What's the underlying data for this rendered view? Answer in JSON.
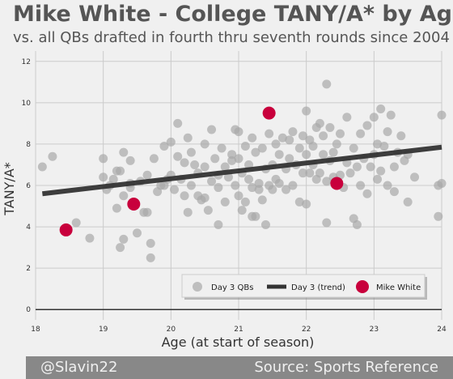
{
  "title": "Mike White - College TANY/A* by Age",
  "subtitle": "vs. all QBs drafted in fourth thru seventh rounds since 2004",
  "footer": {
    "left": "@Slavin22",
    "right": "Source: Sports Reference"
  },
  "colors": {
    "background": "#f0f0f0",
    "grid": "#cbcbcb",
    "scatter": "#a8a8a8",
    "trend": "#333333",
    "highlight": "#c8003c",
    "text": "#555555"
  },
  "chart_data": {
    "type": "scatter",
    "xlabel": "Age (at start of season)",
    "ylabel": "TANY/A*",
    "xlim": [
      18,
      24
    ],
    "ylim": [
      -0.5,
      12.5
    ],
    "xticks": [
      18,
      19,
      20,
      21,
      22,
      23,
      24
    ],
    "yticks": [
      0,
      2,
      4,
      6,
      8,
      10,
      12
    ],
    "grid": true,
    "legend_position": "bottom-right",
    "legend": [
      "Day 3 QBs",
      "Day 3 (trend)",
      "Mike White"
    ],
    "trend": {
      "name": "Day 3 (trend)",
      "x": [
        18.1,
        24
      ],
      "y": [
        5.6,
        7.85
      ]
    },
    "highlight": {
      "name": "Mike White",
      "points": [
        [
          18.45,
          3.85
        ],
        [
          19.45,
          5.1
        ],
        [
          21.45,
          9.5
        ],
        [
          22.45,
          6.1
        ]
      ]
    },
    "scatter": {
      "name": "Day 3 QBs",
      "points": [
        [
          18.1,
          6.9
        ],
        [
          18.25,
          7.4
        ],
        [
          18.6,
          4.2
        ],
        [
          18.8,
          3.45
        ],
        [
          19.0,
          7.3
        ],
        [
          19.0,
          6.4
        ],
        [
          19.05,
          5.8
        ],
        [
          19.1,
          6.0
        ],
        [
          19.15,
          6.3
        ],
        [
          19.2,
          4.9
        ],
        [
          19.2,
          6.7
        ],
        [
          19.25,
          6.7
        ],
        [
          19.25,
          3.0
        ],
        [
          19.3,
          7.6
        ],
        [
          19.3,
          5.5
        ],
        [
          19.3,
          3.4
        ],
        [
          19.4,
          5.9
        ],
        [
          19.4,
          6.1
        ],
        [
          19.4,
          7.2
        ],
        [
          19.5,
          3.7
        ],
        [
          19.55,
          6.2
        ],
        [
          19.6,
          4.7
        ],
        [
          19.65,
          4.7
        ],
        [
          19.65,
          6.5
        ],
        [
          19.7,
          3.2
        ],
        [
          19.7,
          2.5
        ],
        [
          19.75,
          7.3
        ],
        [
          19.8,
          5.7
        ],
        [
          19.85,
          6.0
        ],
        [
          19.9,
          7.9
        ],
        [
          19.9,
          6.0
        ],
        [
          19.95,
          6.3
        ],
        [
          20.0,
          8.1
        ],
        [
          20.0,
          6.5
        ],
        [
          20.05,
          5.8
        ],
        [
          20.1,
          7.4
        ],
        [
          20.1,
          9.0
        ],
        [
          20.15,
          6.3
        ],
        [
          20.2,
          5.5
        ],
        [
          20.2,
          7.1
        ],
        [
          20.25,
          4.7
        ],
        [
          20.25,
          8.3
        ],
        [
          20.3,
          7.6
        ],
        [
          20.3,
          6.0
        ],
        [
          20.35,
          7.0
        ],
        [
          20.4,
          5.5
        ],
        [
          20.4,
          6.6
        ],
        [
          20.45,
          5.3
        ],
        [
          20.5,
          8.0
        ],
        [
          20.5,
          6.9
        ],
        [
          20.5,
          5.4
        ],
        [
          20.55,
          4.8
        ],
        [
          20.6,
          8.7
        ],
        [
          20.6,
          6.2
        ],
        [
          20.65,
          7.3
        ],
        [
          20.7,
          5.9
        ],
        [
          20.7,
          6.5
        ],
        [
          20.7,
          4.1
        ],
        [
          20.75,
          7.8
        ],
        [
          20.8,
          6.9
        ],
        [
          20.8,
          5.2
        ],
        [
          20.85,
          6.4
        ],
        [
          20.9,
          7.2
        ],
        [
          20.9,
          7.5
        ],
        [
          20.95,
          8.7
        ],
        [
          20.95,
          6.0
        ],
        [
          21.0,
          5.5
        ],
        [
          21.0,
          8.6
        ],
        [
          21.0,
          7.3
        ],
        [
          21.05,
          6.6
        ],
        [
          21.05,
          4.8
        ],
        [
          21.1,
          7.9
        ],
        [
          21.1,
          5.2
        ],
        [
          21.15,
          7.0
        ],
        [
          21.15,
          6.3
        ],
        [
          21.2,
          8.3
        ],
        [
          21.2,
          5.9
        ],
        [
          21.2,
          4.5
        ],
        [
          21.25,
          7.6
        ],
        [
          21.25,
          4.5
        ],
        [
          21.3,
          6.1
        ],
        [
          21.3,
          5.8
        ],
        [
          21.35,
          7.8
        ],
        [
          21.35,
          5.3
        ],
        [
          21.4,
          6.8
        ],
        [
          21.4,
          4.1
        ],
        [
          21.45,
          8.5
        ],
        [
          21.45,
          6.0
        ],
        [
          21.5,
          7.0
        ],
        [
          21.5,
          5.8
        ],
        [
          21.55,
          8.0
        ],
        [
          21.55,
          6.3
        ],
        [
          21.6,
          6.1
        ],
        [
          21.6,
          7.5
        ],
        [
          21.65,
          8.3
        ],
        [
          21.7,
          6.8
        ],
        [
          21.7,
          5.8
        ],
        [
          21.75,
          8.2
        ],
        [
          21.75,
          7.3
        ],
        [
          21.8,
          8.6
        ],
        [
          21.8,
          6.0
        ],
        [
          21.85,
          7.0
        ],
        [
          21.9,
          5.2
        ],
        [
          21.9,
          7.8
        ],
        [
          21.95,
          8.4
        ],
        [
          21.95,
          6.6
        ],
        [
          22.0,
          5.1
        ],
        [
          22.0,
          7.5
        ],
        [
          22.0,
          9.6
        ],
        [
          22.05,
          6.6
        ],
        [
          22.05,
          8.2
        ],
        [
          22.1,
          7.0
        ],
        [
          22.1,
          7.9
        ],
        [
          22.15,
          6.3
        ],
        [
          22.15,
          8.8
        ],
        [
          22.2,
          9.0
        ],
        [
          22.2,
          6.6
        ],
        [
          22.25,
          7.5
        ],
        [
          22.25,
          8.4
        ],
        [
          22.3,
          6.2
        ],
        [
          22.3,
          4.2
        ],
        [
          22.3,
          10.9
        ],
        [
          22.35,
          8.8
        ],
        [
          22.35,
          7.2
        ],
        [
          22.4,
          6.4
        ],
        [
          22.4,
          7.6
        ],
        [
          22.45,
          8.0
        ],
        [
          22.5,
          6.5
        ],
        [
          22.5,
          8.5
        ],
        [
          22.55,
          5.9
        ],
        [
          22.6,
          7.1
        ],
        [
          22.6,
          9.3
        ],
        [
          22.65,
          6.6
        ],
        [
          22.7,
          7.8
        ],
        [
          22.7,
          4.4
        ],
        [
          22.75,
          6.9
        ],
        [
          22.75,
          4.1
        ],
        [
          22.8,
          8.5
        ],
        [
          22.8,
          6.0
        ],
        [
          22.85,
          7.3
        ],
        [
          22.9,
          8.9
        ],
        [
          22.9,
          5.6
        ],
        [
          22.95,
          6.9
        ],
        [
          23.0,
          7.5
        ],
        [
          23.0,
          9.3
        ],
        [
          23.05,
          6.3
        ],
        [
          23.05,
          8.0
        ],
        [
          23.1,
          9.7
        ],
        [
          23.1,
          6.7
        ],
        [
          23.15,
          7.9
        ],
        [
          23.2,
          6.0
        ],
        [
          23.2,
          8.6
        ],
        [
          23.25,
          9.4
        ],
        [
          23.3,
          5.7
        ],
        [
          23.3,
          6.9
        ],
        [
          23.35,
          7.6
        ],
        [
          23.4,
          8.4
        ],
        [
          23.45,
          7.2
        ],
        [
          23.5,
          5.2
        ],
        [
          23.5,
          7.5
        ],
        [
          23.6,
          6.4
        ],
        [
          23.95,
          6.0
        ],
        [
          23.95,
          4.5
        ],
        [
          24.0,
          9.4
        ],
        [
          24.0,
          6.1
        ]
      ]
    }
  }
}
